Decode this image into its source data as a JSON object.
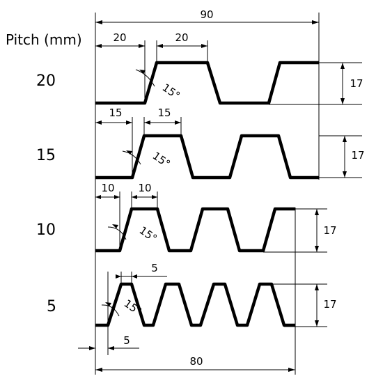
{
  "header": {
    "pitch_label": "Pitch (mm)"
  },
  "overall": {
    "top_width": "90",
    "bottom_width": "80"
  },
  "rows": [
    {
      "pitch": "20",
      "dim_left": "20",
      "dim_right": "20",
      "angle": "15°",
      "height": "17"
    },
    {
      "pitch": "15",
      "dim_left": "15",
      "dim_right": "15",
      "angle": "15°",
      "height": "17"
    },
    {
      "pitch": "10",
      "dim_left": "10",
      "dim_right": "10",
      "angle": "15°",
      "height": "17"
    },
    {
      "pitch": "5",
      "dim_left": "5",
      "dim_right": "5",
      "angle": "15°",
      "height": "17",
      "dim_bottom": "5"
    }
  ]
}
